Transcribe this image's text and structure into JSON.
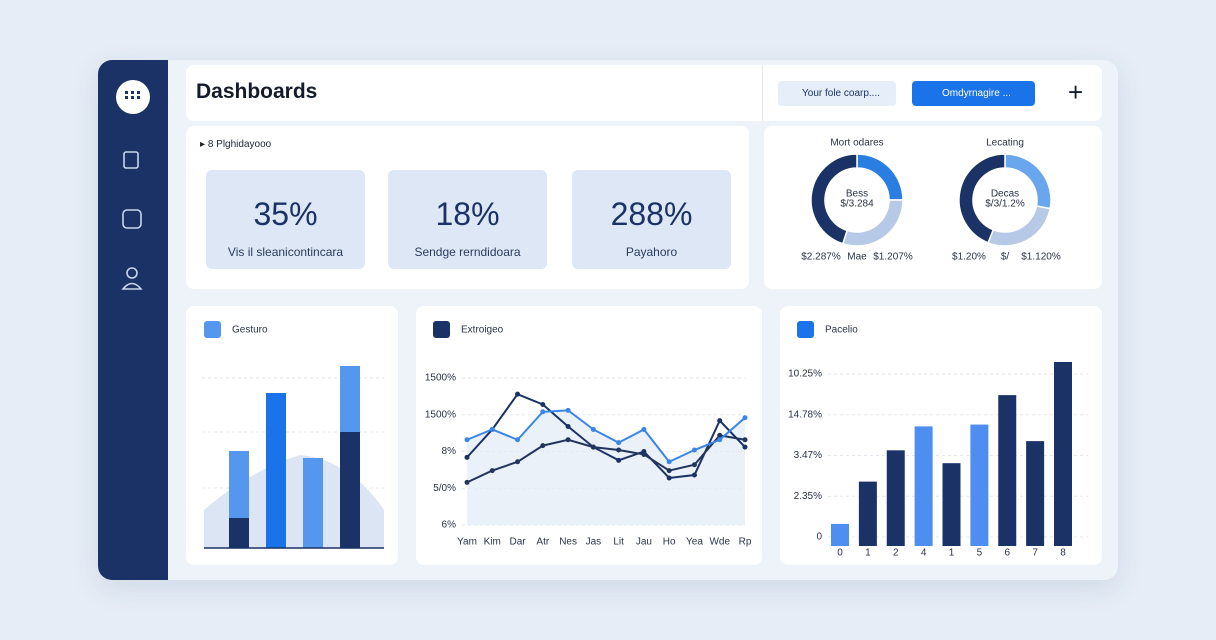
{
  "header": {
    "title": "Dashboards",
    "search": "Your fole coarp....",
    "button": "Omdyrnagire ..."
  },
  "summary": {
    "label": "8 Plghidayooo",
    "cards": [
      {
        "value": "35%",
        "label": "Vis il sleanicontincara"
      },
      {
        "value": "18%",
        "label": "Sendge rerndidoara"
      },
      {
        "value": "288%",
        "label": "Payahoro"
      }
    ]
  },
  "donuts": [
    {
      "title": "Mort odares",
      "center": [
        "Bess",
        "$/3.284"
      ],
      "legend": [
        "$2.287%",
        "Mae",
        "$1.207%"
      ],
      "segments": [
        {
          "value": 25,
          "color": "#2a7de1"
        },
        {
          "value": 30,
          "color": "#b6c9e6"
        },
        {
          "value": 45,
          "color": "#1b3266"
        }
      ]
    },
    {
      "title": "Lecating",
      "center": [
        "Decas",
        "$/3/1.2%"
      ],
      "legend": [
        "$1.20%",
        "$/",
        "$1.120%"
      ],
      "segments": [
        {
          "value": 28,
          "color": "#6aa6ee"
        },
        {
          "value": 28,
          "color": "#b6c9e6"
        },
        {
          "value": 44,
          "color": "#1b3266"
        }
      ]
    }
  ],
  "bar_panel": {
    "title": "Gesturo",
    "ylim": [
      0,
      200
    ],
    "values": [
      97,
      155,
      90,
      182
    ],
    "colors": [
      "#5597ee",
      "#1a73e8",
      "#5597ee",
      "#5597ee"
    ],
    "overlay": {
      "values": [
        30,
        null,
        null,
        116
      ],
      "color": "#1b3266"
    }
  },
  "line_panel": {
    "title": "Extroigeo",
    "categories": [
      "Yam",
      "Kim",
      "Dar",
      "Atr",
      "Nes",
      "Jas",
      "Lit",
      "Jau",
      "Ho",
      "Yea",
      "Wde",
      "Rp"
    ],
    "ylim": [
      0,
      100
    ],
    "ylabels": [
      "1500%",
      "1500%",
      "8%",
      "5/0%",
      "6%"
    ],
    "series": [
      {
        "color": "#1b3266",
        "values": [
          46,
          65,
          89,
          82,
          67,
          53,
          44,
          50,
          32,
          34,
          71,
          53
        ]
      },
      {
        "color": "#22355c",
        "values": [
          29,
          37,
          43,
          54,
          58,
          53,
          51,
          48,
          37,
          41,
          61,
          58
        ]
      },
      {
        "color": "#3a86e8",
        "values": [
          58,
          65,
          58,
          77,
          78,
          65,
          56,
          65,
          43,
          51,
          58,
          73
        ]
      }
    ]
  },
  "column_panel": {
    "title": "Pacelio",
    "categories": [
      "0",
      "1",
      "2",
      "4",
      "1",
      "5",
      "6",
      "7",
      "8"
    ],
    "ylim": [
      0,
      100
    ],
    "ylabels": [
      "10.25%",
      "14.78%",
      "3.47%",
      "2.35%",
      "0"
    ],
    "values": [
      12,
      35,
      52,
      65,
      45,
      66,
      82,
      57,
      100
    ],
    "colors": [
      "#4d8ef0",
      "#1b3266",
      "#1b3266",
      "#4d8ef0",
      "#1b3266",
      "#4d8ef0",
      "#1b3266",
      "#1b3266",
      "#1b3266"
    ]
  }
}
